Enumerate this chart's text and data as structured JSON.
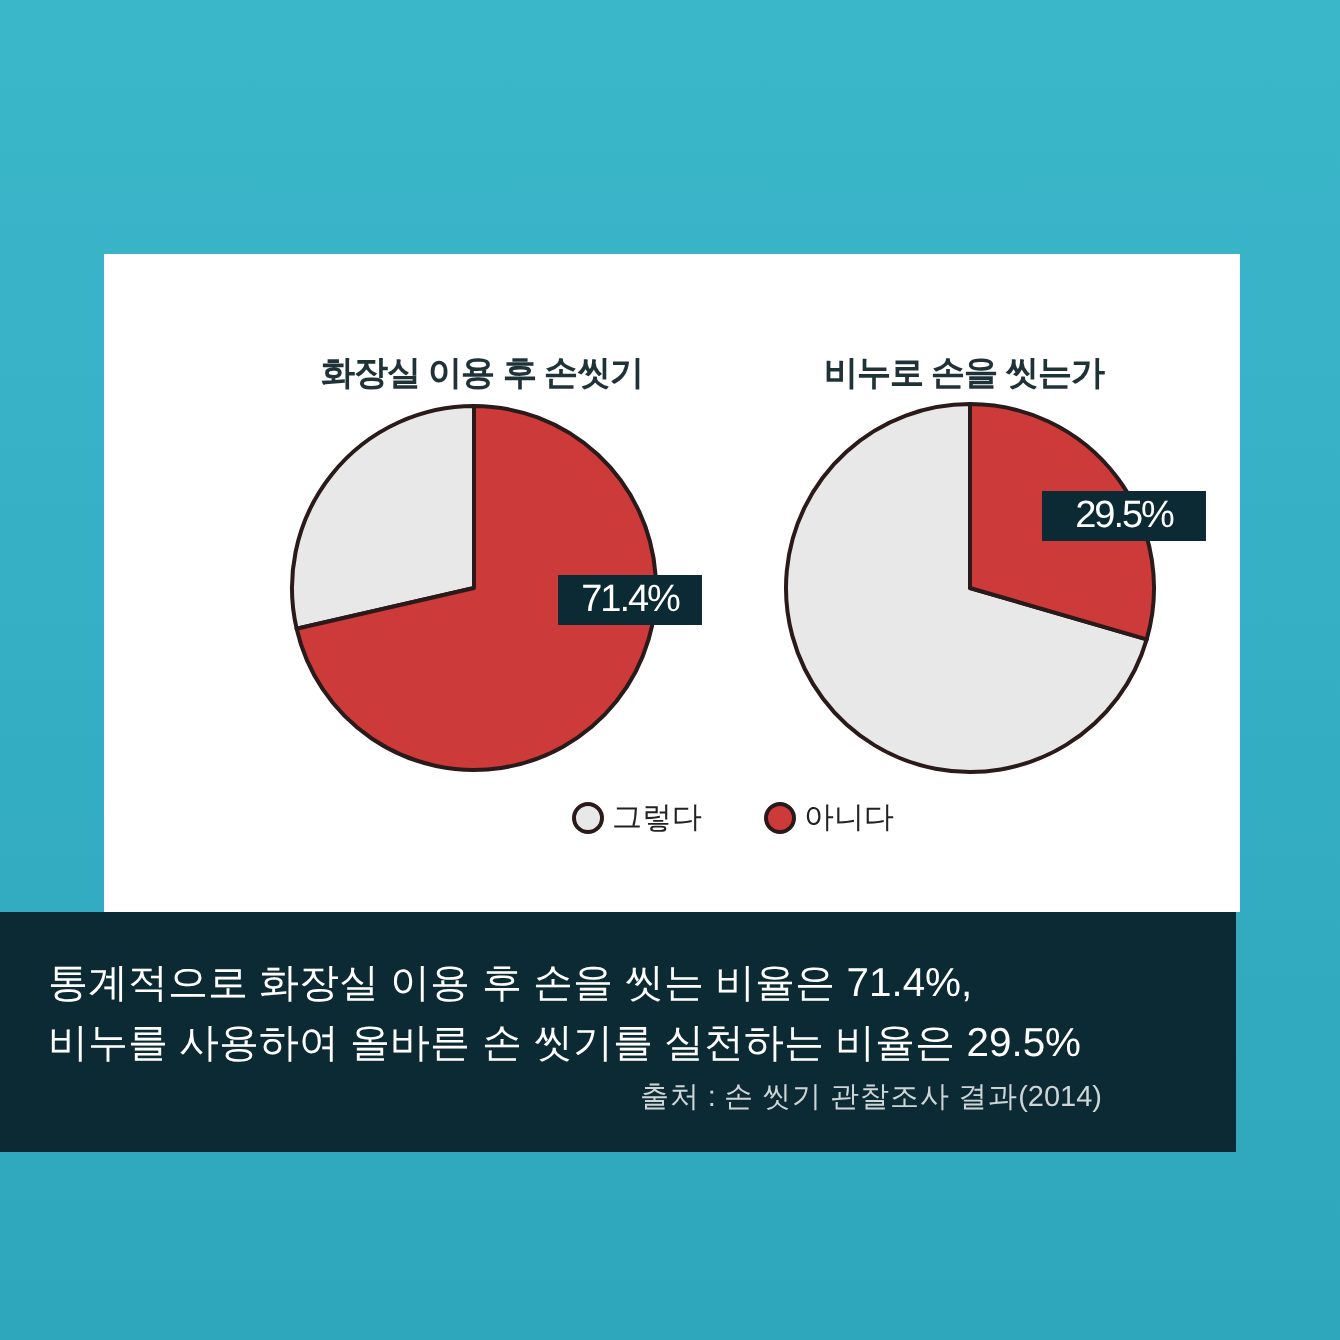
{
  "chart_data": [
    {
      "type": "pie",
      "title": "화장실 이용 후 손씻기",
      "categories": [
        "그렇다",
        "아니다"
      ],
      "values": [
        28.6,
        71.4
      ],
      "colors": [
        "#e8e8e8",
        "#cc3a3a"
      ],
      "value_labels": [
        null,
        "71.4%"
      ],
      "legend": "bottom"
    },
    {
      "type": "pie",
      "title": "비누로 손을 씻는가",
      "categories": [
        null,
        null
      ],
      "values": [
        70.5,
        29.5
      ],
      "colors": [
        "#e8e8e8",
        "#cc3a3a"
      ],
      "value_labels": [
        null,
        "29.5%"
      ],
      "annotations": [
        "통계적으로 화장실 이용 후 손을 씻는 비율은 71.4%,",
        "비누를 사용하여 올바른 손 씻기를 실천하는 비율은 29.5%",
        "출처 : 손 씻기 관찰조사 결과(2014)"
      ]
    }
  ]
}
